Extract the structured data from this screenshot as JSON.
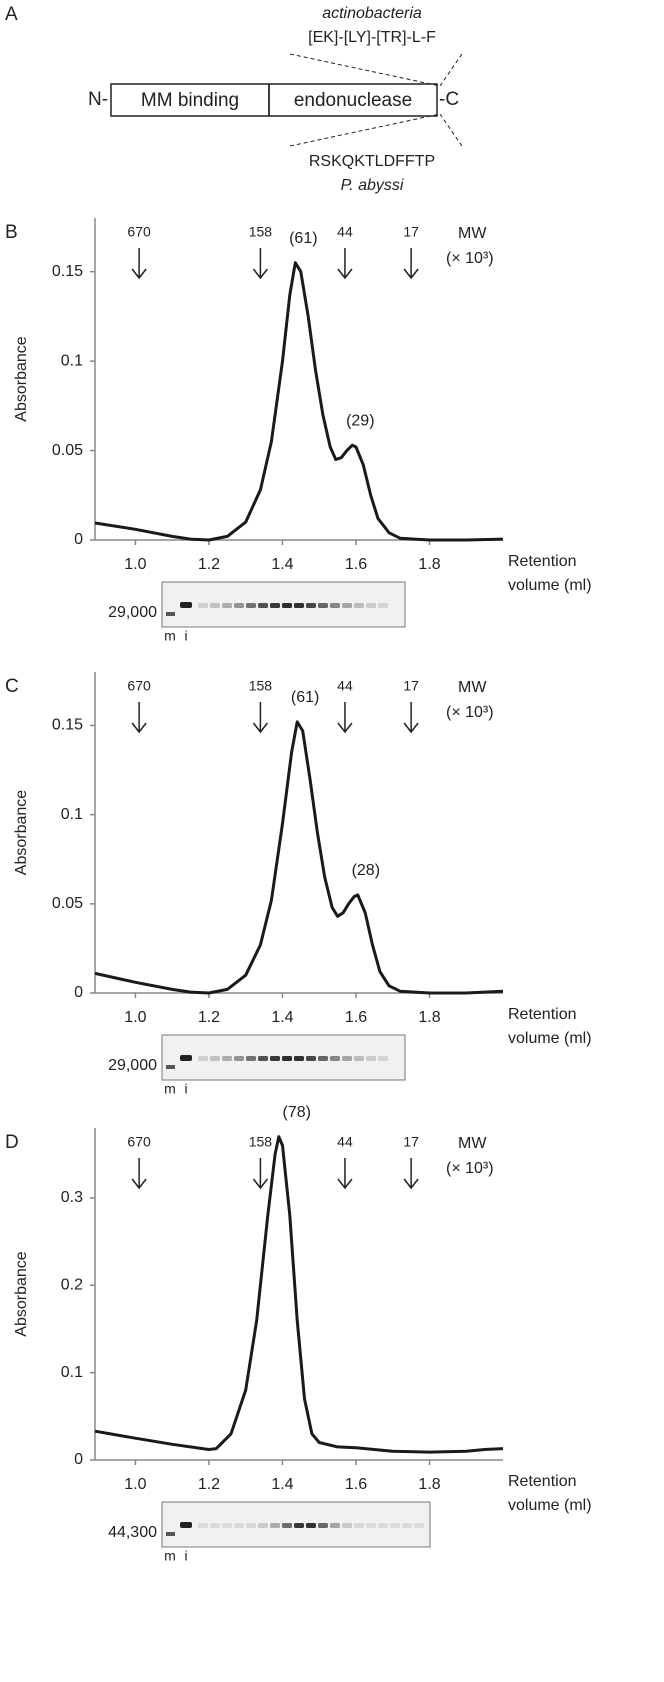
{
  "diagram": {
    "label": "A",
    "n_term": "N-",
    "c_term": "-C",
    "domains": [
      "MM binding",
      "endonuclease"
    ],
    "top_species": "actinobacteria",
    "top_motif": "[EK]-[LY]-[TR]-L-F",
    "bottom_motif": "RSKQKTLDFFTP",
    "bottom_species": "P. abyssi"
  },
  "chart_data": [
    {
      "type": "line",
      "panel": "B",
      "ylabel": "Absorbance",
      "xlabel": [
        "Retention",
        "volume (ml)"
      ],
      "color": "#1a1a1a",
      "x": [
        0.89,
        1.0,
        1.1,
        1.15,
        1.2,
        1.25,
        1.3,
        1.34,
        1.37,
        1.4,
        1.42,
        1.435,
        1.45,
        1.47,
        1.49,
        1.51,
        1.53,
        1.545,
        1.56,
        1.575,
        1.59,
        1.6,
        1.62,
        1.64,
        1.66,
        1.69,
        1.72,
        1.8,
        1.9,
        2.0
      ],
      "values": [
        0.0095,
        0.006,
        0.002,
        0.0005,
        0,
        0.002,
        0.01,
        0.028,
        0.055,
        0.1,
        0.137,
        0.155,
        0.15,
        0.125,
        0.095,
        0.07,
        0.052,
        0.045,
        0.046,
        0.05,
        0.053,
        0.052,
        0.042,
        0.025,
        0.012,
        0.004,
        0.001,
        0,
        0,
        0.0005
      ],
      "xlim": [
        0.89,
        2.0
      ],
      "xticks": [
        {
          "value": 1.0,
          "label": "1.0"
        },
        1.2,
        1.4,
        1.6,
        1.8
      ],
      "ylim": [
        0,
        0.18
      ],
      "yticks": [
        0,
        0.05,
        0.1,
        0.15
      ],
      "mw_title": "MW",
      "mw_unit": "(× 10³)",
      "markers": [
        {
          "mw": 670,
          "x": 1.01
        },
        {
          "mw": 158,
          "x": 1.34
        },
        {
          "mw": 44,
          "x": 1.57
        },
        {
          "mw": 17,
          "x": 1.75
        }
      ],
      "peak_labels": [
        {
          "text": "(61)",
          "x": 1.435
        },
        {
          "text": "(29)",
          "x": 1.59
        }
      ],
      "gel": {
        "marker": "29,000",
        "lanes": [
          "m",
          "i"
        ]
      }
    },
    {
      "type": "line",
      "panel": "C",
      "ylabel": "Absorbance",
      "xlabel": [
        "Retention",
        "volume (ml)"
      ],
      "color": "#1a1a1a",
      "x": [
        0.89,
        1.0,
        1.1,
        1.15,
        1.2,
        1.25,
        1.3,
        1.34,
        1.37,
        1.4,
        1.425,
        1.44,
        1.455,
        1.475,
        1.495,
        1.515,
        1.535,
        1.55,
        1.565,
        1.58,
        1.595,
        1.605,
        1.625,
        1.645,
        1.665,
        1.69,
        1.72,
        1.8,
        1.9,
        2.0
      ],
      "values": [
        0.011,
        0.006,
        0.002,
        0.0005,
        0,
        0.002,
        0.01,
        0.027,
        0.052,
        0.095,
        0.135,
        0.152,
        0.147,
        0.12,
        0.09,
        0.065,
        0.048,
        0.043,
        0.045,
        0.05,
        0.054,
        0.055,
        0.045,
        0.027,
        0.012,
        0.004,
        0.001,
        0,
        0,
        0.001
      ],
      "xlim": [
        0.89,
        2.0
      ],
      "xticks": [
        {
          "value": 1.0,
          "label": "1.0"
        },
        1.2,
        1.4,
        1.6,
        1.8
      ],
      "ylim": [
        0,
        0.18
      ],
      "yticks": [
        0,
        0.05,
        0.1,
        0.15
      ],
      "mw_title": "MW",
      "mw_unit": "(× 10³)",
      "markers": [
        {
          "mw": 670,
          "x": 1.01
        },
        {
          "mw": 158,
          "x": 1.34
        },
        {
          "mw": 44,
          "x": 1.57
        },
        {
          "mw": 17,
          "x": 1.75
        }
      ],
      "peak_labels": [
        {
          "text": "(61)",
          "x": 1.44
        },
        {
          "text": "(28)",
          "x": 1.605
        }
      ],
      "gel": {
        "marker": "29,000",
        "lanes": [
          "m",
          "i"
        ]
      }
    },
    {
      "type": "line",
      "panel": "D",
      "ylabel": "Absorbance",
      "xlabel": [
        "Retention",
        "volume (ml)"
      ],
      "color": "#1a1a1a",
      "x": [
        0.89,
        1.0,
        1.1,
        1.2,
        1.22,
        1.26,
        1.3,
        1.33,
        1.36,
        1.38,
        1.39,
        1.4,
        1.42,
        1.44,
        1.46,
        1.48,
        1.5,
        1.55,
        1.6,
        1.7,
        1.8,
        1.9,
        1.95,
        2.0
      ],
      "values": [
        0.033,
        0.025,
        0.018,
        0.012,
        0.013,
        0.03,
        0.08,
        0.16,
        0.28,
        0.35,
        0.37,
        0.36,
        0.28,
        0.16,
        0.07,
        0.03,
        0.02,
        0.015,
        0.014,
        0.01,
        0.009,
        0.01,
        0.012,
        0.013
      ],
      "xlim": [
        0.89,
        2.0
      ],
      "xticks": [
        {
          "value": 1.0,
          "label": "1.0"
        },
        1.2,
        1.4,
        1.6,
        1.8
      ],
      "ylim": [
        0,
        0.38
      ],
      "yticks": [
        0,
        0.1,
        0.2,
        0.3
      ],
      "mw_title": "MW",
      "mw_unit": "(× 10³)",
      "markers": [
        {
          "mw": 670,
          "x": 1.01
        },
        {
          "mw": 158,
          "x": 1.34
        },
        {
          "mw": 44,
          "x": 1.57
        },
        {
          "mw": 17,
          "x": 1.75
        }
      ],
      "peak_labels": [
        {
          "text": "(78)",
          "x": 1.39
        }
      ],
      "gel": {
        "marker": "44,300",
        "lanes": [
          "m",
          "i"
        ]
      }
    }
  ]
}
